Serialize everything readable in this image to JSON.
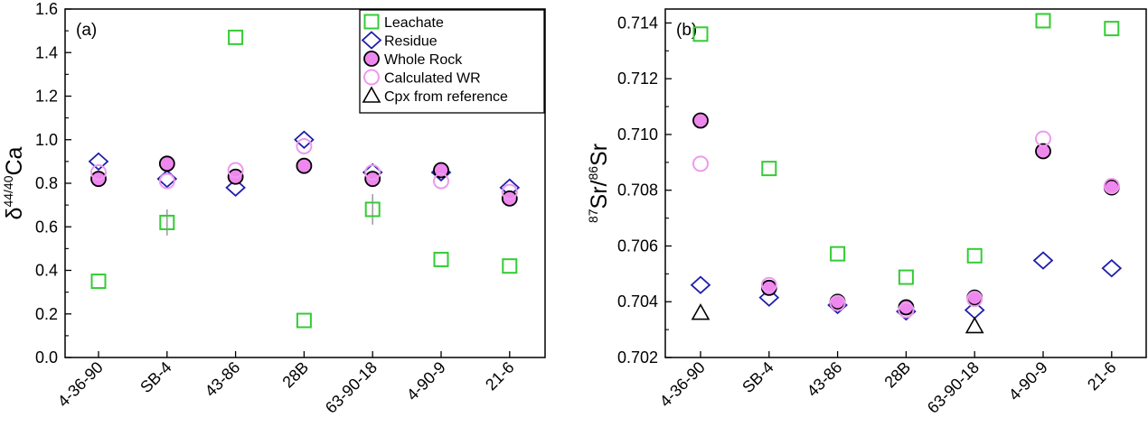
{
  "colors": {
    "leachate": "#33cc33",
    "residue": "#1f1fa8",
    "whole_rock_fill": "#ee88ee",
    "calculated_wr": "#ee99ee",
    "cpx": "#000000",
    "axis": "#000000"
  },
  "chart_data": [
    {
      "type": "scatter",
      "panel_label": "(a)",
      "categories": [
        "4-36-90",
        "SB-4",
        "43-86",
        "28B",
        "63-90-18",
        "4-90-9",
        "21-6"
      ],
      "xlabel": "",
      "ylabel": "δ44/40Ca",
      "ylabel_parts": {
        "base": "δ",
        "sup": "44/40",
        "tail": "Ca"
      },
      "ylim": [
        0.0,
        1.6
      ],
      "yticks": [
        "0.0",
        "0.2",
        "0.4",
        "0.6",
        "0.8",
        "1.0",
        "1.2",
        "1.4",
        "1.6"
      ],
      "grid": false,
      "legend_position": "top-right",
      "series": [
        {
          "name": "Leachate",
          "marker": "square",
          "values": [
            0.35,
            0.62,
            1.47,
            0.17,
            0.68,
            0.45,
            0.42
          ],
          "error": [
            0,
            0.06,
            0,
            0,
            0.07,
            0,
            0
          ]
        },
        {
          "name": "Residue",
          "marker": "diamond",
          "values": [
            0.9,
            0.82,
            0.78,
            1.0,
            0.85,
            0.85,
            0.78
          ]
        },
        {
          "name": "Whole Rock",
          "marker": "circle-filled",
          "values": [
            0.82,
            0.89,
            0.83,
            0.88,
            0.82,
            0.86,
            0.73
          ]
        },
        {
          "name": "Calculated WR",
          "marker": "circle-open",
          "values": [
            0.85,
            0.81,
            0.86,
            0.97,
            0.85,
            0.81,
            0.76
          ]
        },
        {
          "name": "Cpx from reference",
          "marker": "triangle",
          "values": [
            null,
            null,
            null,
            null,
            null,
            null,
            null
          ]
        }
      ]
    },
    {
      "type": "scatter",
      "panel_label": "(b)",
      "categories": [
        "4-36-90",
        "SB-4",
        "43-86",
        "28B",
        "63-90-18",
        "4-90-9",
        "21-6"
      ],
      "xlabel": "",
      "ylabel": "87Sr/86Sr",
      "ylabel_parts": {
        "sup1": "87",
        "mid": "Sr/",
        "sup2": "86",
        "tail": "Sr"
      },
      "ylim": [
        0.702,
        0.7145
      ],
      "yticks": [
        "0.702",
        "0.704",
        "0.706",
        "0.708",
        "0.710",
        "0.712",
        "0.714"
      ],
      "grid": false,
      "legend_position": "none",
      "series": [
        {
          "name": "Leachate",
          "marker": "square",
          "values": [
            0.7136,
            0.70878,
            0.70572,
            0.70488,
            0.70565,
            0.71408,
            0.7138
          ]
        },
        {
          "name": "Residue",
          "marker": "diamond",
          "values": [
            0.7046,
            0.70415,
            0.70388,
            0.70365,
            0.7037,
            0.70548,
            0.7052
          ]
        },
        {
          "name": "Whole Rock",
          "marker": "circle-filled",
          "values": [
            0.7105,
            0.7045,
            0.704,
            0.7038,
            0.70415,
            0.7094,
            0.7081
          ]
        },
        {
          "name": "Calculated WR",
          "marker": "circle-open",
          "values": [
            0.70895,
            0.7046,
            0.70395,
            0.7037,
            0.7041,
            0.70985,
            0.70815
          ]
        },
        {
          "name": "Cpx from reference",
          "marker": "triangle",
          "values": [
            0.7036,
            null,
            null,
            null,
            0.70312,
            null,
            null
          ]
        }
      ]
    }
  ]
}
